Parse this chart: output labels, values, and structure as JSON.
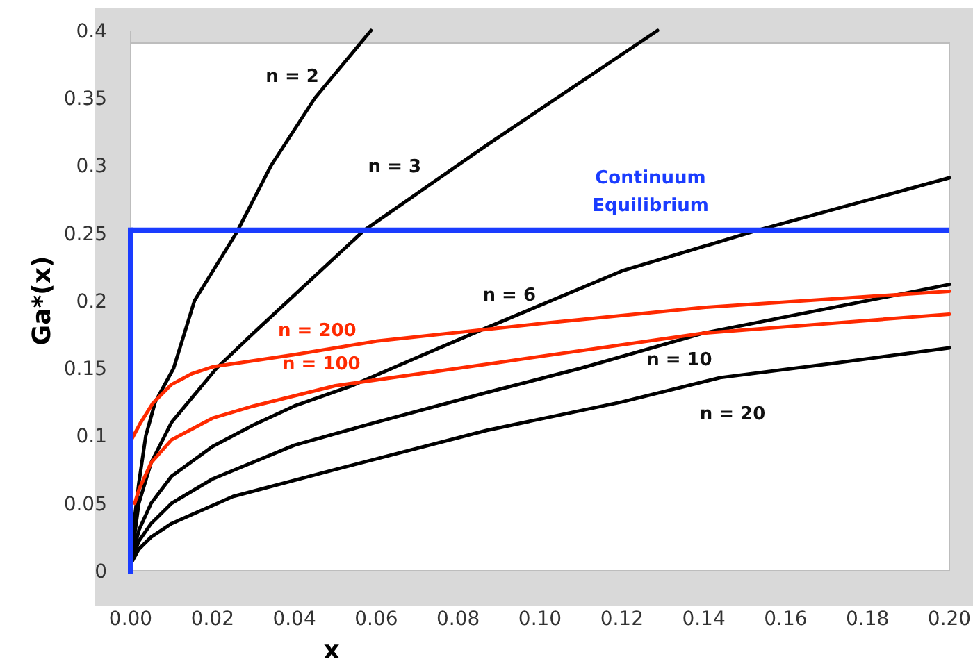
{
  "chart_data": {
    "type": "line",
    "xlabel": "x",
    "ylabel": "Ga*(x)",
    "xlim": [
      0,
      0.2
    ],
    "ylim": [
      0,
      0.4
    ],
    "xticks": [
      {
        "value": 0,
        "label": "0.00"
      },
      {
        "value": 0.02,
        "label": "0.02"
      },
      {
        "value": 0.04,
        "label": "0.04"
      },
      {
        "value": 0.06,
        "label": "0.06"
      },
      {
        "value": 0.08,
        "label": "0.08"
      },
      {
        "value": 0.1,
        "label": "0.10"
      },
      {
        "value": 0.12,
        "label": "0.12"
      },
      {
        "value": 0.14,
        "label": "0.14"
      },
      {
        "value": 0.16,
        "label": "0.16"
      },
      {
        "value": 0.18,
        "label": "0.18"
      },
      {
        "value": 0.2,
        "label": "0.20"
      }
    ],
    "yticks": [
      0,
      0.05,
      0.1,
      0.15,
      0.2,
      0.25,
      0.3,
      0.35,
      0.4
    ],
    "grid": false,
    "marker": "none",
    "line_style": "solid",
    "series": [
      {
        "name": "n = 2",
        "color": "#000000",
        "x": [
          0,
          0.001,
          0.002,
          0.0037,
          0.006,
          0.0105,
          0.0156,
          0.0258,
          0.0343,
          0.045,
          0.0587
        ],
        "values": [
          0.005,
          0.04,
          0.065,
          0.1,
          0.125,
          0.15,
          0.2,
          0.25,
          0.3,
          0.35,
          0.4
        ]
      },
      {
        "name": "n = 3",
        "color": "#000000",
        "x": [
          0,
          0.002,
          0.005,
          0.01,
          0.021,
          0.03,
          0.057,
          0.0869,
          0.1287
        ],
        "values": [
          0.005,
          0.05,
          0.08,
          0.11,
          0.15,
          0.176,
          0.252,
          0.315,
          0.4
        ]
      },
      {
        "name": "n = 6",
        "color": "#000000",
        "x": [
          0,
          0.002,
          0.005,
          0.01,
          0.02,
          0.03,
          0.04,
          0.054,
          0.07,
          0.087,
          0.12,
          0.153,
          0.2
        ],
        "values": [
          0.005,
          0.03,
          0.05,
          0.07,
          0.092,
          0.108,
          0.122,
          0.137,
          0.158,
          0.18,
          0.222,
          0.252,
          0.291
        ]
      },
      {
        "name": "n = 10",
        "color": "#000000",
        "x": [
          0,
          0.002,
          0.005,
          0.01,
          0.02,
          0.04,
          0.06,
          0.087,
          0.11,
          0.14,
          0.17,
          0.2
        ],
        "values": [
          0.005,
          0.022,
          0.035,
          0.05,
          0.068,
          0.093,
          0.11,
          0.132,
          0.15,
          0.176,
          0.194,
          0.212
        ]
      },
      {
        "name": "n = 20",
        "color": "#000000",
        "x": [
          0,
          0.002,
          0.005,
          0.01,
          0.025,
          0.05,
          0.087,
          0.12,
          0.144,
          0.17,
          0.2
        ],
        "values": [
          0.005,
          0.016,
          0.025,
          0.035,
          0.055,
          0.075,
          0.104,
          0.125,
          0.143,
          0.153,
          0.165
        ]
      },
      {
        "name": "n = 200",
        "color": "#ff2a00",
        "x": [
          0,
          0.0025,
          0.0054,
          0.01,
          0.015,
          0.02,
          0.04,
          0.06,
          0.1,
          0.14,
          0.2
        ],
        "values": [
          0.096,
          0.11,
          0.124,
          0.138,
          0.146,
          0.151,
          0.16,
          0.17,
          0.183,
          0.195,
          0.207
        ]
      },
      {
        "name": "n = 100",
        "color": "#ff2a00",
        "x": [
          0.001,
          0.002,
          0.005,
          0.01,
          0.02,
          0.03,
          0.05,
          0.087,
          0.14,
          0.2
        ],
        "values": [
          0.05,
          0.06,
          0.08,
          0.097,
          0.113,
          0.122,
          0.137,
          0.153,
          0.176,
          0.19
        ]
      }
    ],
    "ref_lines": [
      {
        "axis": "y",
        "value": 0.252,
        "label": "Continuum Equilibrium",
        "color": "#1a3cff"
      },
      {
        "axis": "x",
        "value": 0,
        "color": "#1a3cff"
      }
    ]
  }
}
